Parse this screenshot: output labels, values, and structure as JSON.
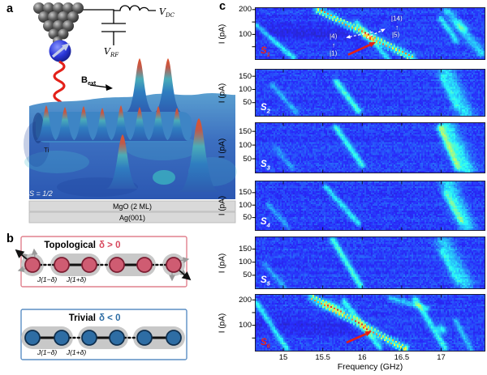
{
  "figure": {
    "letters": {
      "a": "a",
      "b": "b",
      "c": "c"
    }
  },
  "panel_a": {
    "circuit": {
      "v_dc": "V",
      "v_dc_sub": "DC",
      "v_rf": "V",
      "v_rf_sub": "RF"
    },
    "field_label": "B",
    "field_sub": "ext",
    "surface": {
      "ti_label": "Ti",
      "spin_label": "S = 1/2",
      "layer1": "MgO (2 ML)",
      "layer2": "Ag(001)"
    }
  },
  "panel_b": {
    "chains": [
      {
        "kind": "topological",
        "title": "Topological",
        "delta_label": "δ > 0",
        "accent": "#d84a5f",
        "border": "#e0808d",
        "site_fill": "#cf5c72",
        "site_stroke": "#7d1f33",
        "bond_labels": [
          "J(1−δ)",
          "J(1+δ)"
        ],
        "n_sites": 6
      },
      {
        "kind": "trivial",
        "title": "Trivial",
        "delta_label": "δ < 0",
        "accent": "#2e6da4",
        "border": "#5b8ec4",
        "site_fill": "#2e6da4",
        "site_stroke": "#10304f",
        "bond_labels": [
          "J(1−δ)",
          "J(1+δ)"
        ],
        "n_sites": 6
      }
    ]
  },
  "chart_data": {
    "type": "heatmap",
    "xlabel": "Frequency (GHz)",
    "x_ticks": [
      15,
      15.5,
      16,
      16.5,
      17
    ],
    "x_range": [
      14.65,
      17.55
    ],
    "ylabel": "I (pA)",
    "colormap": "jet",
    "arrow_color": "#e51f14",
    "annotation_color": "#ffffff",
    "panels": [
      {
        "label": "S",
        "sub": "1",
        "label_color": "#e8251a",
        "i_max": 206,
        "y_ticks": [
          {
            "v": 200,
            "label": "200"
          },
          {
            "v": 150,
            "label": ""
          },
          {
            "v": 100,
            "label": "100"
          },
          {
            "v": 50,
            "label": ""
          }
        ],
        "resonances": [
          {
            "f1": 15.42,
            "i1": 204,
            "f2": 16.63,
            "i2": 8,
            "amp": 0.52,
            "sigma": 3.2,
            "dotted": true
          },
          {
            "f1": 16.03,
            "i1": 96,
            "f2": 16.1,
            "i2": 88,
            "amp": 0.15,
            "sigma": 3.0
          },
          {
            "f1": 15.92,
            "i1": 150,
            "f2": 16.32,
            "i2": 4,
            "amp": 0.2,
            "sigma": 2.4
          },
          {
            "f1": 14.65,
            "i1": 140,
            "f2": 15.12,
            "i2": 8,
            "amp": 0.2,
            "sigma": 2.4
          },
          {
            "f1": 17.06,
            "i1": 200,
            "f2": 17.5,
            "i2": 28,
            "amp": 0.17,
            "sigma": 4.0
          },
          {
            "f1": 16.98,
            "i1": 168,
            "f2": 17.18,
            "i2": 78,
            "amp": 0.2,
            "sigma": 2.6
          },
          {
            "f1": 17.22,
            "i1": 140,
            "f2": 17.26,
            "i2": 130,
            "amp": 0.12,
            "sigma": 4.5
          },
          {
            "f1": 14.65,
            "i1": 120,
            "f2": 15.95,
            "i2": 95,
            "amp": -0.05,
            "sigma": 8
          }
        ],
        "annotations": {
          "kets": [
            {
              "text": "|4⟩",
              "x": 0.34,
              "y": 0.56
            },
            {
              "text": "↑",
              "x": 0.34,
              "y": 0.73
            },
            {
              "text": "|1⟩",
              "x": 0.34,
              "y": 0.89
            },
            {
              "text": "|14⟩",
              "x": 0.617,
              "y": 0.2
            },
            {
              "text": "↑",
              "x": 0.617,
              "y": 0.38
            },
            {
              "text": "|5⟩",
              "x": 0.613,
              "y": 0.53
            }
          ],
          "dashed_arrows": [
            {
              "x1": 0.511,
              "y1": 0.468,
              "x2": 0.394,
              "y2": 0.579
            },
            {
              "x1": 0.486,
              "y1": 0.579,
              "x2": 0.567,
              "y2": 0.405
            }
          ],
          "red_arrow": {
            "x1": 0.404,
            "y1": 0.913,
            "x2": 0.525,
            "y2": 0.667
          }
        }
      },
      {
        "label": "S",
        "sub": "2",
        "label_color": "#ffffff",
        "i_max": 175,
        "y_ticks": [
          {
            "v": 150,
            "label": "150"
          },
          {
            "v": 100,
            "label": "100"
          },
          {
            "v": 50,
            "label": "50"
          }
        ],
        "resonances": [
          {
            "f1": 15.66,
            "i1": 133,
            "f2": 15.94,
            "i2": 22,
            "amp": 0.26,
            "sigma": 2.8
          },
          {
            "f1": 14.85,
            "i1": 120,
            "f2": 15.15,
            "i2": 18,
            "amp": 0.13,
            "sigma": 2.4
          },
          {
            "f1": 17.06,
            "i1": 168,
            "f2": 17.3,
            "i2": 10,
            "amp": 0.18,
            "sigma": 7
          },
          {
            "f1": 17.0,
            "i1": 150,
            "f2": 17.18,
            "i2": 40,
            "amp": 0.12,
            "sigma": 2.6
          }
        ]
      },
      {
        "label": "S",
        "sub": "3",
        "label_color": "#ffffff",
        "i_max": 180,
        "y_ticks": [
          {
            "v": 150,
            "label": "150"
          },
          {
            "v": 100,
            "label": "100"
          },
          {
            "v": 50,
            "label": "50"
          }
        ],
        "resonances": [
          {
            "f1": 15.65,
            "i1": 168,
            "f2": 15.99,
            "i2": 30,
            "amp": 0.24,
            "sigma": 2.6
          },
          {
            "f1": 17.06,
            "i1": 170,
            "f2": 17.32,
            "i2": 10,
            "amp": 0.22,
            "sigma": 7
          },
          {
            "f1": 16.98,
            "i1": 165,
            "f2": 17.2,
            "i2": 22,
            "amp": 0.26,
            "sigma": 2.8
          },
          {
            "f1": 14.9,
            "i1": 92,
            "f2": 15.1,
            "i2": 18,
            "amp": 0.1,
            "sigma": 2.4
          }
        ]
      },
      {
        "label": "S",
        "sub": "4",
        "label_color": "#ffffff",
        "i_max": 195,
        "y_ticks": [
          {
            "v": 150,
            "label": "150"
          },
          {
            "v": 100,
            "label": "100"
          },
          {
            "v": 50,
            "label": "50"
          }
        ],
        "resonances": [
          {
            "f1": 15.53,
            "i1": 175,
            "f2": 15.94,
            "i2": 30,
            "amp": 0.2,
            "sigma": 2.6
          },
          {
            "f1": 17.08,
            "i1": 185,
            "f2": 17.32,
            "i2": 14,
            "amp": 0.2,
            "sigma": 7
          },
          {
            "f1": 17.05,
            "i1": 150,
            "f2": 17.24,
            "i2": 40,
            "amp": 0.17,
            "sigma": 2.6
          },
          {
            "f1": 14.8,
            "i1": 105,
            "f2": 15.05,
            "i2": 14,
            "amp": 0.11,
            "sigma": 2.4
          }
        ]
      },
      {
        "label": "S",
        "sub": "5",
        "label_color": "#ffffff",
        "i_max": 195,
        "y_ticks": [
          {
            "v": 150,
            "label": "150"
          },
          {
            "v": 100,
            "label": "100"
          },
          {
            "v": 50,
            "label": "50"
          }
        ],
        "resonances": [
          {
            "f1": 15.62,
            "i1": 188,
            "f2": 15.97,
            "i2": 12,
            "amp": 0.26,
            "sigma": 2.8
          },
          {
            "f1": 17.02,
            "i1": 175,
            "f2": 17.3,
            "i2": 20,
            "amp": 0.17,
            "sigma": 7
          },
          {
            "f1": 17.0,
            "i1": 140,
            "f2": 17.2,
            "i2": 30,
            "amp": 0.12,
            "sigma": 2.6
          },
          {
            "f1": 14.75,
            "i1": 95,
            "f2": 15.0,
            "i2": 12,
            "amp": 0.12,
            "sigma": 2.4
          }
        ]
      },
      {
        "label": "S",
        "sub": "6",
        "label_color": "#e8251a",
        "i_max": 220,
        "y_ticks": [
          {
            "v": 200,
            "label": "200"
          },
          {
            "v": 150,
            "label": ""
          },
          {
            "v": 100,
            "label": "100"
          },
          {
            "v": 50,
            "label": ""
          }
        ],
        "resonances": [
          {
            "f1": 15.35,
            "i1": 214,
            "f2": 16.52,
            "i2": 12,
            "amp": 0.52,
            "sigma": 3.4,
            "dotted": true
          },
          {
            "f1": 15.55,
            "i1": 185,
            "f2": 15.7,
            "i2": 162,
            "amp": 0.18,
            "sigma": 4.5
          },
          {
            "f1": 15.76,
            "i1": 198,
            "f2": 16.21,
            "i2": 16,
            "amp": 0.22,
            "sigma": 2.6
          },
          {
            "f1": 14.65,
            "i1": 192,
            "f2": 15.03,
            "i2": 12,
            "amp": 0.22,
            "sigma": 2.6
          },
          {
            "f1": 16.66,
            "i1": 208,
            "f2": 17.04,
            "i2": 12,
            "amp": 0.22,
            "sigma": 2.8
          },
          {
            "f1": 16.99,
            "i1": 92,
            "f2": 17.01,
            "i2": 82,
            "amp": 0.2,
            "sigma": 3.5
          },
          {
            "f1": 17.18,
            "i1": 118,
            "f2": 17.36,
            "i2": 12,
            "amp": 0.15,
            "sigma": 2.6
          },
          {
            "f1": 16.35,
            "i1": 210,
            "f2": 16.82,
            "i2": 170,
            "amp": 0.16,
            "sigma": 2.8
          },
          {
            "f1": 14.65,
            "i1": 110,
            "f2": 15.8,
            "i2": 92,
            "amp": -0.04,
            "sigma": 8
          }
        ],
        "annotations": {
          "red_arrow": {
            "x1": 0.397,
            "y1": 0.855,
            "x2": 0.507,
            "y2": 0.652
          }
        }
      }
    ]
  }
}
